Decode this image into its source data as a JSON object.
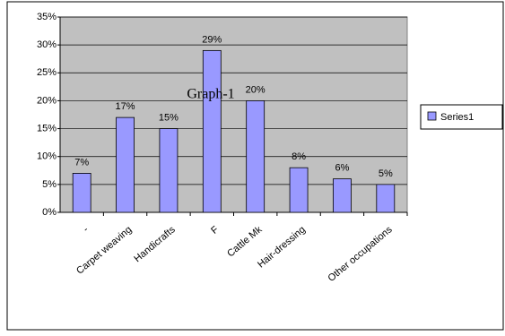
{
  "chart_data": {
    "type": "bar",
    "annotation": "Graph-1",
    "categories": [
      "-",
      "Carpet weaving",
      "Handicrafts",
      "F",
      "Cattle Mk",
      "Hair-dressing",
      null,
      "Other occupations"
    ],
    "series": [
      {
        "name": "Series1",
        "color": "#9999ff",
        "values": [
          7,
          17,
          15,
          29,
          20,
          8,
          6,
          5
        ],
        "value_labels": [
          "7%",
          "17%",
          "15%",
          "29%",
          "20%",
          "8%",
          "6%",
          "5%"
        ]
      }
    ],
    "ylim": [
      0,
      35
    ],
    "yticks": [
      {
        "value": 0,
        "label": "0%"
      },
      {
        "value": 5,
        "label": "5%"
      },
      {
        "value": 10,
        "label": "10%"
      },
      {
        "value": 15,
        "label": "15%"
      },
      {
        "value": 20,
        "label": "20%"
      },
      {
        "value": 25,
        "label": "25%"
      },
      {
        "value": 30,
        "label": "30%"
      },
      {
        "value": 35,
        "label": "35%"
      }
    ],
    "grid": true,
    "legend": "right"
  }
}
